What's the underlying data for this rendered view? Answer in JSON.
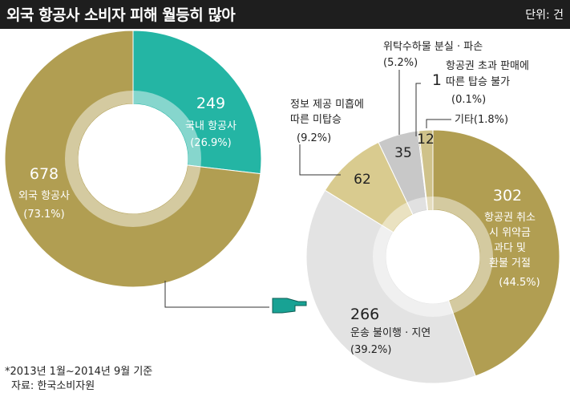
{
  "header": {
    "title": "외국 항공사 소비자 피해 월등히 많아",
    "unit": "단위: 건"
  },
  "colors": {
    "gold": "#b19e52",
    "teal": "#24b5a4",
    "grey": "#e3e3e3",
    "greyDark": "#c8c8c8",
    "beige": "#d9cb8f",
    "tan": "#cfc28a"
  },
  "footnote": {
    "period": "*2013년 1월~2014년 9월 기준",
    "source": "자료: 한국소비자원"
  },
  "chart_data": [
    {
      "type": "pie",
      "style": "donut",
      "slices": [
        {
          "name_lines": [
            "국내 항공사"
          ],
          "value": 249,
          "percent": "(26.9%)",
          "color": "#24b5a4"
        },
        {
          "name_lines": [
            "외국 항공사"
          ],
          "value": 678,
          "percent": "(73.1%)",
          "color": "#b19e52"
        }
      ]
    },
    {
      "type": "pie",
      "style": "donut",
      "slices": [
        {
          "name_lines": [
            "항공권 취소",
            "시 위약금",
            "과다 및",
            "환불 거절"
          ],
          "value": 302,
          "percent": "(44.5%)",
          "color": "#b19e52"
        },
        {
          "name_lines": [
            "운송 불이행 · 지연"
          ],
          "value": 266,
          "percent": "(39.2%)",
          "color": "#e3e3e3"
        },
        {
          "name_lines": [
            "정보 제공 미흡에",
            "따른 미탑승"
          ],
          "value": 62,
          "percent": "(9.2%)",
          "color": "#d9cb8f"
        },
        {
          "name_lines": [
            "위탁수하물 분실 · 파손"
          ],
          "value": 35,
          "percent": "(5.2%)",
          "color": "#c8c8c8"
        },
        {
          "name_lines": [
            "항공권 초과 판매에",
            "따른 탑승 불가"
          ],
          "value": 1,
          "percent": "(0.1%)",
          "color": "#b19e52"
        },
        {
          "name_lines": [
            "기타"
          ],
          "value": 12,
          "percent": "(1.8%)",
          "color": "#cfc28a"
        }
      ]
    }
  ]
}
